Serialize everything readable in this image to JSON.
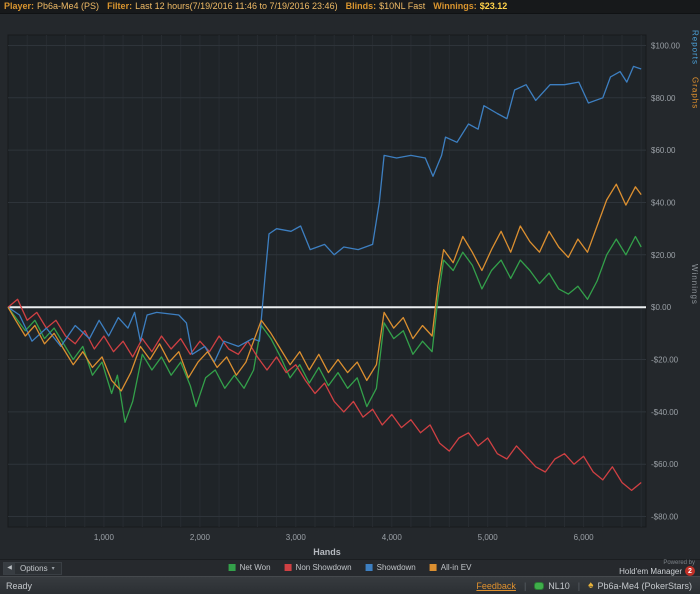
{
  "titlebar": {
    "player_label": "Player:",
    "player_value": "Pb6a-Me4 (PS)",
    "filter_label": "Filter:",
    "filter_value": "Last 12 hours(7/19/2016 11:46 to 7/19/2016 23:46)",
    "blinds_label": "Blinds:",
    "blinds_value": "$10NL Fast",
    "winnings_label": "Winnings:",
    "winnings_value": "$23.12"
  },
  "side_tabs": [
    {
      "label": "Reports",
      "color": "#4ba0d8"
    },
    {
      "label": "Graphs",
      "color": "#e0912e"
    }
  ],
  "chart_data": {
    "type": "line",
    "title": "",
    "xlabel": "Hands",
    "ylabel": "Winnings",
    "xlim": [
      0,
      6650
    ],
    "ylim": [
      -84,
      104
    ],
    "x_minor_step": 200,
    "x_ticks": [
      1000,
      2000,
      3000,
      4000,
      5000,
      6000
    ],
    "x_tick_labels": [
      "1,000",
      "2,000",
      "3,000",
      "4,000",
      "5,000",
      "6,000"
    ],
    "y_ticks": [
      100,
      80,
      60,
      40,
      20,
      0,
      -20,
      -40,
      -60,
      -80
    ],
    "y_tick_labels": [
      "$100.00",
      "$80.00",
      "$60.00",
      "$40.00",
      "$20.00",
      "$0.00",
      "-$20.00",
      "-$40.00",
      "-$60.00",
      "-$80.00"
    ],
    "zero_line": true,
    "grid": true,
    "legend_position": "bottom",
    "plot_bg": "#1f2428",
    "frame": "#171a1d",
    "grid_v": "#272c31",
    "grid_h": "#2e343a",
    "tick_color": "#9ba1a7",
    "zero_line_color": "#eceff1",
    "series": [
      {
        "name": "Net Won",
        "color": "#33a04a",
        "points": [
          [
            0,
            0
          ],
          [
            80,
            -4
          ],
          [
            180,
            -9
          ],
          [
            280,
            -5
          ],
          [
            380,
            -12
          ],
          [
            480,
            -8
          ],
          [
            580,
            -14
          ],
          [
            680,
            -20
          ],
          [
            780,
            -15
          ],
          [
            880,
            -26
          ],
          [
            980,
            -21
          ],
          [
            1080,
            -33
          ],
          [
            1140,
            -26
          ],
          [
            1220,
            -44
          ],
          [
            1300,
            -36
          ],
          [
            1400,
            -18
          ],
          [
            1500,
            -24
          ],
          [
            1600,
            -19
          ],
          [
            1700,
            -26
          ],
          [
            1800,
            -21
          ],
          [
            1900,
            -30
          ],
          [
            1960,
            -38
          ],
          [
            2060,
            -27
          ],
          [
            2160,
            -24
          ],
          [
            2260,
            -31
          ],
          [
            2360,
            -26
          ],
          [
            2460,
            -31
          ],
          [
            2560,
            -24
          ],
          [
            2640,
            -7
          ],
          [
            2740,
            -12
          ],
          [
            2840,
            -19
          ],
          [
            2940,
            -27
          ],
          [
            3040,
            -22
          ],
          [
            3140,
            -29
          ],
          [
            3240,
            -23
          ],
          [
            3340,
            -30
          ],
          [
            3440,
            -25
          ],
          [
            3540,
            -31
          ],
          [
            3640,
            -27
          ],
          [
            3740,
            -38
          ],
          [
            3840,
            -31
          ],
          [
            3920,
            -6
          ],
          [
            4020,
            -12
          ],
          [
            4120,
            -9
          ],
          [
            4220,
            -18
          ],
          [
            4320,
            -13
          ],
          [
            4420,
            -17
          ],
          [
            4480,
            3
          ],
          [
            4540,
            18
          ],
          [
            4640,
            14
          ],
          [
            4740,
            21
          ],
          [
            4840,
            16
          ],
          [
            4940,
            7
          ],
          [
            5040,
            14
          ],
          [
            5140,
            18
          ],
          [
            5240,
            11
          ],
          [
            5340,
            18
          ],
          [
            5440,
            14
          ],
          [
            5540,
            9
          ],
          [
            5640,
            13
          ],
          [
            5740,
            7
          ],
          [
            5840,
            5
          ],
          [
            5940,
            8
          ],
          [
            6040,
            3
          ],
          [
            6140,
            10
          ],
          [
            6240,
            20
          ],
          [
            6340,
            26
          ],
          [
            6440,
            20
          ],
          [
            6540,
            27
          ],
          [
            6600,
            23
          ]
        ]
      },
      {
        "name": "Non Showdown",
        "color": "#cf4043",
        "points": [
          [
            0,
            0
          ],
          [
            100,
            3
          ],
          [
            200,
            -5
          ],
          [
            300,
            -2
          ],
          [
            400,
            -8
          ],
          [
            500,
            -5
          ],
          [
            600,
            -11
          ],
          [
            700,
            -14
          ],
          [
            800,
            -9
          ],
          [
            900,
            -16
          ],
          [
            1000,
            -11
          ],
          [
            1100,
            -17
          ],
          [
            1200,
            -13
          ],
          [
            1300,
            -19
          ],
          [
            1400,
            -12
          ],
          [
            1500,
            -17
          ],
          [
            1600,
            -11
          ],
          [
            1700,
            -16
          ],
          [
            1800,
            -12
          ],
          [
            1900,
            -18
          ],
          [
            2000,
            -13
          ],
          [
            2100,
            -17
          ],
          [
            2200,
            -11
          ],
          [
            2300,
            -16
          ],
          [
            2400,
            -18
          ],
          [
            2500,
            -13
          ],
          [
            2600,
            -19
          ],
          [
            2700,
            -24
          ],
          [
            2800,
            -19
          ],
          [
            2900,
            -25
          ],
          [
            3000,
            -22
          ],
          [
            3100,
            -28
          ],
          [
            3200,
            -33
          ],
          [
            3300,
            -29
          ],
          [
            3400,
            -36
          ],
          [
            3500,
            -40
          ],
          [
            3600,
            -36
          ],
          [
            3700,
            -42
          ],
          [
            3800,
            -39
          ],
          [
            3900,
            -45
          ],
          [
            4000,
            -41
          ],
          [
            4100,
            -46
          ],
          [
            4200,
            -43
          ],
          [
            4300,
            -48
          ],
          [
            4400,
            -45
          ],
          [
            4500,
            -52
          ],
          [
            4600,
            -55
          ],
          [
            4700,
            -50
          ],
          [
            4800,
            -48
          ],
          [
            4900,
            -53
          ],
          [
            5000,
            -50
          ],
          [
            5100,
            -56
          ],
          [
            5200,
            -58
          ],
          [
            5300,
            -53
          ],
          [
            5400,
            -57
          ],
          [
            5500,
            -61
          ],
          [
            5600,
            -63
          ],
          [
            5700,
            -58
          ],
          [
            5800,
            -56
          ],
          [
            5900,
            -60
          ],
          [
            6000,
            -57
          ],
          [
            6100,
            -63
          ],
          [
            6200,
            -66
          ],
          [
            6300,
            -61
          ],
          [
            6400,
            -67
          ],
          [
            6500,
            -70
          ],
          [
            6600,
            -67
          ]
        ]
      },
      {
        "name": "Showdown",
        "color": "#3d7fc1",
        "points": [
          [
            0,
            0
          ],
          [
            120,
            -3
          ],
          [
            250,
            -13
          ],
          [
            400,
            -8
          ],
          [
            550,
            -15
          ],
          [
            700,
            -7
          ],
          [
            850,
            -12
          ],
          [
            950,
            -5
          ],
          [
            1050,
            -11
          ],
          [
            1150,
            -4
          ],
          [
            1250,
            -8
          ],
          [
            1320,
            -2
          ],
          [
            1380,
            -13
          ],
          [
            1450,
            -3
          ],
          [
            1550,
            -2
          ],
          [
            1780,
            -3
          ],
          [
            1860,
            -6
          ],
          [
            1920,
            -18
          ],
          [
            2050,
            -15
          ],
          [
            2150,
            -21
          ],
          [
            2250,
            -13
          ],
          [
            2400,
            -15
          ],
          [
            2550,
            -12
          ],
          [
            2620,
            -13
          ],
          [
            2680,
            12
          ],
          [
            2720,
            28
          ],
          [
            2800,
            30
          ],
          [
            2950,
            29
          ],
          [
            3050,
            31
          ],
          [
            3150,
            22
          ],
          [
            3300,
            24
          ],
          [
            3400,
            20
          ],
          [
            3500,
            23
          ],
          [
            3650,
            22
          ],
          [
            3800,
            24
          ],
          [
            3870,
            40
          ],
          [
            3920,
            58
          ],
          [
            4050,
            57
          ],
          [
            4200,
            58
          ],
          [
            4350,
            57
          ],
          [
            4430,
            50
          ],
          [
            4520,
            58
          ],
          [
            4560,
            65
          ],
          [
            4680,
            63
          ],
          [
            4800,
            70
          ],
          [
            4900,
            68
          ],
          [
            4960,
            77
          ],
          [
            5100,
            74
          ],
          [
            5200,
            72
          ],
          [
            5280,
            83
          ],
          [
            5400,
            85
          ],
          [
            5500,
            79
          ],
          [
            5650,
            85
          ],
          [
            5800,
            85
          ],
          [
            5950,
            86
          ],
          [
            6050,
            78
          ],
          [
            6200,
            80
          ],
          [
            6280,
            88
          ],
          [
            6380,
            90
          ],
          [
            6450,
            86
          ],
          [
            6520,
            92
          ],
          [
            6600,
            91
          ]
        ]
      },
      {
        "name": "All-in EV",
        "color": "#db8f30",
        "points": [
          [
            0,
            0
          ],
          [
            80,
            -5
          ],
          [
            180,
            -11
          ],
          [
            280,
            -7
          ],
          [
            380,
            -14
          ],
          [
            480,
            -10
          ],
          [
            580,
            -16
          ],
          [
            680,
            -22
          ],
          [
            780,
            -17
          ],
          [
            880,
            -23
          ],
          [
            980,
            -19
          ],
          [
            1080,
            -28
          ],
          [
            1180,
            -32
          ],
          [
            1280,
            -25
          ],
          [
            1380,
            -15
          ],
          [
            1480,
            -20
          ],
          [
            1580,
            -14
          ],
          [
            1680,
            -21
          ],
          [
            1780,
            -17
          ],
          [
            1880,
            -27
          ],
          [
            1980,
            -21
          ],
          [
            2080,
            -17
          ],
          [
            2180,
            -23
          ],
          [
            2280,
            -19
          ],
          [
            2380,
            -26
          ],
          [
            2480,
            -21
          ],
          [
            2640,
            -5
          ],
          [
            2740,
            -10
          ],
          [
            2840,
            -16
          ],
          [
            2940,
            -22
          ],
          [
            3040,
            -17
          ],
          [
            3140,
            -24
          ],
          [
            3240,
            -18
          ],
          [
            3340,
            -25
          ],
          [
            3440,
            -20
          ],
          [
            3540,
            -25
          ],
          [
            3640,
            -21
          ],
          [
            3740,
            -28
          ],
          [
            3840,
            -22
          ],
          [
            3920,
            -2
          ],
          [
            4020,
            -8
          ],
          [
            4120,
            -4
          ],
          [
            4220,
            -12
          ],
          [
            4320,
            -7
          ],
          [
            4420,
            -11
          ],
          [
            4480,
            8
          ],
          [
            4540,
            22
          ],
          [
            4640,
            17
          ],
          [
            4740,
            27
          ],
          [
            4840,
            21
          ],
          [
            4940,
            14
          ],
          [
            5040,
            22
          ],
          [
            5140,
            29
          ],
          [
            5240,
            21
          ],
          [
            5340,
            31
          ],
          [
            5440,
            25
          ],
          [
            5540,
            21
          ],
          [
            5640,
            29
          ],
          [
            5740,
            23
          ],
          [
            5840,
            19
          ],
          [
            5940,
            26
          ],
          [
            6040,
            21
          ],
          [
            6140,
            31
          ],
          [
            6240,
            41
          ],
          [
            6340,
            47
          ],
          [
            6440,
            39
          ],
          [
            6540,
            46
          ],
          [
            6600,
            43
          ]
        ]
      }
    ]
  },
  "options_panel": {
    "label": "Options"
  },
  "powered_by": {
    "prefix": "Powered by",
    "name": "Hold'em Manager",
    "badge": "2"
  },
  "statusbar": {
    "ready": "Ready",
    "feedback": "Feedback",
    "stake": "NL10",
    "player": "Pb6a-Me4 (PokerStars)"
  }
}
